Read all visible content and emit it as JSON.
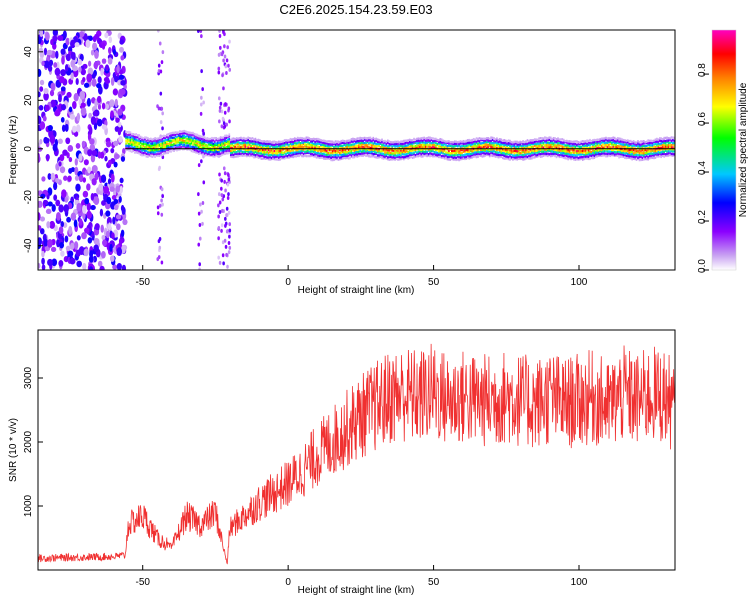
{
  "title": "C2E6.2025.154.23.59.E03",
  "chart_data": [
    {
      "type": "heatmap",
      "xlabel": "Height of straight line (km)",
      "ylabel": "Frequency (Hz)",
      "xlim": [
        -86,
        133
      ],
      "ylim": [
        -50,
        49
      ],
      "x_ticks": [
        "-50",
        "0",
        "50",
        "100"
      ],
      "x_tick_values": [
        -50,
        0,
        50,
        100
      ],
      "y_ticks": [
        "-40",
        "-20",
        "0",
        "20",
        "40"
      ],
      "y_tick_values": [
        -40,
        -20,
        0,
        20,
        40
      ],
      "colorbar": {
        "label": "Normalized spectral amplitude",
        "range": [
          0,
          0.98
        ],
        "ticks": [
          "0.0",
          "0.2",
          "0.4",
          "0.6",
          "0.8"
        ],
        "tick_values": [
          0,
          0.2,
          0.4,
          0.6,
          0.8
        ],
        "colormap": [
          "#ffffff",
          "#c9a3f2",
          "#8b00ff",
          "#0000ff",
          "#00c8ff",
          "#00ff00",
          "#ffff00",
          "#ff8000",
          "#ff0000",
          "#ff00c0"
        ]
      },
      "regions": [
        {
          "x_range": [
            -86,
            -56
          ],
          "description_value": "broadband noise",
          "max_amplitude": 0.25
        },
        {
          "x_range": [
            -56,
            -20
          ],
          "center_freq": 2,
          "max_amplitude": 0.8
        },
        {
          "x_range": [
            -20,
            133
          ],
          "center_freq": 0,
          "max_amplitude": 0.95
        }
      ],
      "reference_line_y": 0
    },
    {
      "type": "line",
      "xlabel": "Height of straight line (km)",
      "ylabel": "SNR (10 * v/v)",
      "xlim": [
        -86,
        133
      ],
      "ylim": [
        0,
        3750
      ],
      "x_ticks": [
        "-50",
        "0",
        "50",
        "100"
      ],
      "x_tick_values": [
        -50,
        0,
        50,
        100
      ],
      "y_ticks": [
        "1000",
        "2000",
        "3000"
      ],
      "y_tick_values": [
        1000,
        2000,
        3000
      ],
      "color": "#f03030",
      "series": [
        {
          "x": [
            -86,
            -80,
            -70,
            -60,
            -56,
            -55,
            -50,
            -45,
            -40,
            -35,
            -30,
            -25,
            -21,
            -20,
            -15,
            -10,
            -5,
            0,
            5,
            10,
            15,
            20,
            25,
            30,
            35,
            40,
            45,
            50,
            55,
            60,
            65,
            70,
            75,
            80,
            85,
            90,
            95,
            100,
            105,
            110,
            115,
            120,
            125,
            130,
            133
          ],
          "values": [
            180,
            190,
            200,
            210,
            230,
            700,
            850,
            500,
            350,
            850,
            700,
            900,
            100,
            650,
            850,
            1050,
            1200,
            1350,
            1550,
            1800,
            2000,
            2200,
            2400,
            2550,
            2700,
            2750,
            2700,
            2800,
            2650,
            2700,
            2650,
            2650,
            2700,
            2650,
            2600,
            2700,
            2600,
            2650,
            2700,
            2550,
            2750,
            2650,
            2750,
            2700,
            2500
          ]
        }
      ]
    }
  ]
}
